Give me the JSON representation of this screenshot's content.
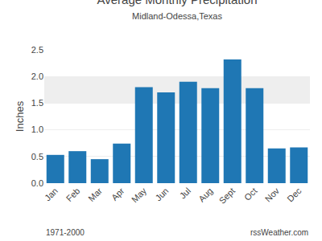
{
  "chart_data": {
    "type": "bar",
    "title": "Average Monthly Precipitation",
    "subtitle": "Midland-Odessa,Texas",
    "y_label": "Inches",
    "categories": [
      "Jan",
      "Feb",
      "Mar",
      "Apr",
      "May",
      "Jun",
      "Jul",
      "Aug",
      "Sept",
      "Oct",
      "Nov",
      "Dec"
    ],
    "values": [
      0.53,
      0.6,
      0.45,
      0.74,
      1.8,
      1.7,
      1.9,
      1.78,
      2.32,
      1.78,
      0.65,
      0.67
    ],
    "band": [
      1.5,
      2.0
    ],
    "ylim": [
      0,
      2.5
    ],
    "yticks": [
      {
        "value": 0,
        "label": "0.0"
      },
      0.5,
      {
        "value": 1,
        "label": "1.0"
      },
      1.5,
      {
        "value": 2,
        "label": "2.0"
      },
      2.5
    ],
    "grid": true,
    "annotations": [
      "1971-2000",
      "rssWeather.com"
    ]
  }
}
